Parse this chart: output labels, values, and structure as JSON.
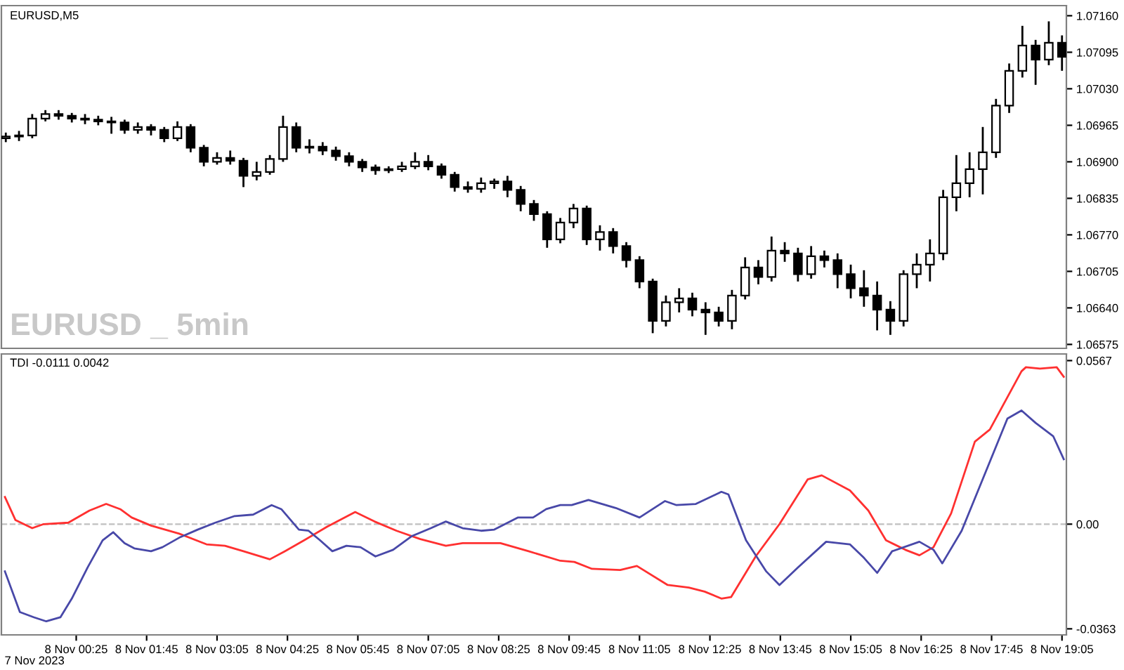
{
  "chart_data": [
    {
      "type": "candlestick",
      "title": "EURUSD,M5",
      "annotations": [
        "EURUSD _ 5min"
      ],
      "color": "#000000",
      "tick_labels": "y",
      "xlim": [
        "2023-11-07T23:00",
        "2023-11-08T19:10"
      ],
      "ylim": [
        1.06568,
        1.07178
      ],
      "yticks": [
        {
          "value": 1.0716,
          "label": "1.07160"
        },
        {
          "value": 1.07095,
          "label": "1.07095"
        },
        {
          "value": 1.0703,
          "label": "1.07030"
        },
        {
          "value": 1.06965,
          "label": "1.06965"
        },
        {
          "value": 1.069,
          "label": "1.06900"
        },
        {
          "value": 1.06835,
          "label": "1.06835"
        },
        {
          "value": 1.0677,
          "label": "1.06770"
        },
        {
          "value": 1.06705,
          "label": "1.06705"
        },
        {
          "value": 1.0664,
          "label": "1.06640"
        },
        {
          "value": 1.06575,
          "label": "1.06575"
        }
      ],
      "x": [
        "2023-11-07T23:05",
        "2023-11-07T23:20",
        "2023-11-07T23:35",
        "2023-11-07T23:50",
        "2023-11-08T00:05",
        "2023-11-08T00:20",
        "2023-11-08T00:35",
        "2023-11-08T00:50",
        "2023-11-08T01:05",
        "2023-11-08T01:20",
        "2023-11-08T01:35",
        "2023-11-08T01:50",
        "2023-11-08T02:05",
        "2023-11-08T02:20",
        "2023-11-08T02:35",
        "2023-11-08T02:50",
        "2023-11-08T03:05",
        "2023-11-08T03:20",
        "2023-11-08T03:35",
        "2023-11-08T03:50",
        "2023-11-08T04:05",
        "2023-11-08T04:20",
        "2023-11-08T04:35",
        "2023-11-08T04:50",
        "2023-11-08T05:05",
        "2023-11-08T05:20",
        "2023-11-08T05:35",
        "2023-11-08T05:50",
        "2023-11-08T06:05",
        "2023-11-08T06:20",
        "2023-11-08T06:35",
        "2023-11-08T06:50",
        "2023-11-08T07:05",
        "2023-11-08T07:20",
        "2023-11-08T07:35",
        "2023-11-08T07:50",
        "2023-11-08T08:05",
        "2023-11-08T08:20",
        "2023-11-08T08:35",
        "2023-11-08T08:50",
        "2023-11-08T09:05",
        "2023-11-08T09:20",
        "2023-11-08T09:35",
        "2023-11-08T09:50",
        "2023-11-08T10:05",
        "2023-11-08T10:20",
        "2023-11-08T10:35",
        "2023-11-08T10:50",
        "2023-11-08T11:05",
        "2023-11-08T11:20",
        "2023-11-08T11:35",
        "2023-11-08T11:50",
        "2023-11-08T12:05",
        "2023-11-08T12:20",
        "2023-11-08T12:35",
        "2023-11-08T12:50",
        "2023-11-08T13:05",
        "2023-11-08T13:20",
        "2023-11-08T13:35",
        "2023-11-08T13:50",
        "2023-11-08T14:05",
        "2023-11-08T14:20",
        "2023-11-08T14:35",
        "2023-11-08T14:50",
        "2023-11-08T15:05",
        "2023-11-08T15:20",
        "2023-11-08T15:35",
        "2023-11-08T15:50",
        "2023-11-08T16:05",
        "2023-11-08T16:20",
        "2023-11-08T16:35",
        "2023-11-08T16:50",
        "2023-11-08T17:05",
        "2023-11-08T17:20",
        "2023-11-08T17:35",
        "2023-11-08T17:50",
        "2023-11-08T18:05",
        "2023-11-08T18:20",
        "2023-11-08T18:35",
        "2023-11-08T18:50",
        "2023-11-08T19:05"
      ],
      "ohlc": [
        [
          1.06942,
          1.06952,
          1.06935,
          1.06945
        ],
        [
          1.06945,
          1.06955,
          1.06937,
          1.06947
        ],
        [
          1.06947,
          1.06985,
          1.06942,
          1.06977
        ],
        [
          1.06977,
          1.06992,
          1.06972,
          1.06985
        ],
        [
          1.06985,
          1.06992,
          1.06975,
          1.06982
        ],
        [
          1.06982,
          1.06987,
          1.0697,
          1.06977
        ],
        [
          1.06977,
          1.06985,
          1.06967,
          1.06975
        ],
        [
          1.06975,
          1.06982,
          1.06965,
          1.06972
        ],
        [
          1.06972,
          1.0698,
          1.0695,
          1.0697
        ],
        [
          1.0697,
          1.06975,
          1.0695,
          1.06957
        ],
        [
          1.06957,
          1.0697,
          1.0695,
          1.06962
        ],
        [
          1.06962,
          1.06967,
          1.06947,
          1.06957
        ],
        [
          1.06957,
          1.06962,
          1.06935,
          1.06942
        ],
        [
          1.06942,
          1.06972,
          1.06937,
          1.06962
        ],
        [
          1.06962,
          1.06967,
          1.06917,
          1.06925
        ],
        [
          1.06925,
          1.0693,
          1.06892,
          1.069
        ],
        [
          1.069,
          1.06917,
          1.06895,
          1.06907
        ],
        [
          1.06907,
          1.0692,
          1.06895,
          1.06902
        ],
        [
          1.06902,
          1.06907,
          1.06855,
          1.06875
        ],
        [
          1.06875,
          1.069,
          1.06867,
          1.06882
        ],
        [
          1.06882,
          1.06912,
          1.06877,
          1.06905
        ],
        [
          1.06905,
          1.06982,
          1.069,
          1.06962
        ],
        [
          1.06962,
          1.0697,
          1.06917,
          1.06925
        ],
        [
          1.06925,
          1.0694,
          1.06915,
          1.06927
        ],
        [
          1.06927,
          1.06935,
          1.06912,
          1.0692
        ],
        [
          1.0692,
          1.06927,
          1.06902,
          1.0691
        ],
        [
          1.0691,
          1.06917,
          1.06892,
          1.069
        ],
        [
          1.069,
          1.06905,
          1.06882,
          1.0689
        ],
        [
          1.0689,
          1.06895,
          1.06877,
          1.06885
        ],
        [
          1.06885,
          1.06892,
          1.0688,
          1.06887
        ],
        [
          1.06887,
          1.069,
          1.06882,
          1.06892
        ],
        [
          1.06892,
          1.06917,
          1.06887,
          1.069
        ],
        [
          1.069,
          1.06912,
          1.06885,
          1.06892
        ],
        [
          1.06892,
          1.06897,
          1.0687,
          1.06877
        ],
        [
          1.06877,
          1.06882,
          1.06847,
          1.06855
        ],
        [
          1.06855,
          1.06865,
          1.06845,
          1.06852
        ],
        [
          1.06852,
          1.06872,
          1.06845,
          1.06862
        ],
        [
          1.06862,
          1.0687,
          1.06852,
          1.06865
        ],
        [
          1.06865,
          1.06875,
          1.06837,
          1.0685
        ],
        [
          1.0685,
          1.06857,
          1.06812,
          1.06825
        ],
        [
          1.06825,
          1.06832,
          1.06795,
          1.06807
        ],
        [
          1.06807,
          1.06812,
          1.06747,
          1.06762
        ],
        [
          1.06762,
          1.068,
          1.06755,
          1.06792
        ],
        [
          1.06792,
          1.06825,
          1.06782,
          1.06817
        ],
        [
          1.06817,
          1.06822,
          1.06752,
          1.06762
        ],
        [
          1.06762,
          1.06787,
          1.06742,
          1.06775
        ],
        [
          1.06775,
          1.06782,
          1.06737,
          1.0675
        ],
        [
          1.0675,
          1.06757,
          1.06712,
          1.06725
        ],
        [
          1.06725,
          1.06732,
          1.06675,
          1.06687
        ],
        [
          1.06687,
          1.06692,
          1.06595,
          1.06617
        ],
        [
          1.06617,
          1.06662,
          1.06607,
          1.0665
        ],
        [
          1.0665,
          1.06675,
          1.06632,
          1.06657
        ],
        [
          1.06657,
          1.06667,
          1.06625,
          1.06637
        ],
        [
          1.06637,
          1.0665,
          1.06592,
          1.06632
        ],
        [
          1.06632,
          1.06642,
          1.06607,
          1.06617
        ],
        [
          1.06617,
          1.06672,
          1.06602,
          1.06662
        ],
        [
          1.06662,
          1.0673,
          1.06655,
          1.06712
        ],
        [
          1.06712,
          1.06725,
          1.06682,
          1.06695
        ],
        [
          1.06695,
          1.06767,
          1.06687,
          1.06742
        ],
        [
          1.06742,
          1.06757,
          1.06722,
          1.06737
        ],
        [
          1.06737,
          1.06747,
          1.06687,
          1.067
        ],
        [
          1.067,
          1.0675,
          1.06692,
          1.06732
        ],
        [
          1.06732,
          1.06742,
          1.06712,
          1.06725
        ],
        [
          1.06725,
          1.06737,
          1.06675,
          1.067
        ],
        [
          1.067,
          1.06717,
          1.06657,
          1.06675
        ],
        [
          1.06675,
          1.06707,
          1.06642,
          1.06662
        ],
        [
          1.06662,
          1.06687,
          1.066,
          1.06637
        ],
        [
          1.06637,
          1.06652,
          1.06592,
          1.06617
        ],
        [
          1.06617,
          1.06707,
          1.06607,
          1.067
        ],
        [
          1.067,
          1.06737,
          1.06675,
          1.06717
        ],
        [
          1.06717,
          1.06762,
          1.06687,
          1.06737
        ],
        [
          1.06737,
          1.0685,
          1.06725,
          1.06837
        ],
        [
          1.06837,
          1.06912,
          1.06812,
          1.06862
        ],
        [
          1.06862,
          1.06917,
          1.06837,
          1.06887
        ],
        [
          1.06887,
          1.06962,
          1.06842,
          1.06917
        ],
        [
          1.06917,
          1.07012,
          1.06907,
          1.07
        ],
        [
          1.07,
          1.07075,
          1.06987,
          1.07062
        ],
        [
          1.07062,
          1.07142,
          1.0705,
          1.07107
        ],
        [
          1.07107,
          1.07117,
          1.07037,
          1.07082
        ],
        [
          1.07082,
          1.0715,
          1.07072,
          1.07112
        ],
        [
          1.07112,
          1.07125,
          1.07062,
          1.07087
        ]
      ]
    },
    {
      "type": "line",
      "title": "TDI -0.0111 0.0042",
      "xlim": [
        "2023-11-07T23:00",
        "2023-11-08T19:10"
      ],
      "ylim": [
        -0.0384,
        0.059
      ],
      "yticks": [
        0.0567,
        {
          "value": 0,
          "label": "0.00"
        },
        -0.0363
      ],
      "annotations": [
        "7 Nov 2023"
      ],
      "xticks": [
        {
          "value": "2023-11-08T00:25",
          "label": "8 Nov 00:25"
        },
        {
          "value": "2023-11-08T01:45",
          "label": "8 Nov 01:45"
        },
        {
          "value": "2023-11-08T03:05",
          "label": "8 Nov 03:05"
        },
        {
          "value": "2023-11-08T04:25",
          "label": "8 Nov 04:25"
        },
        {
          "value": "2023-11-08T05:45",
          "label": "8 Nov 05:45"
        },
        {
          "value": "2023-11-08T07:05",
          "label": "8 Nov 07:05"
        },
        {
          "value": "2023-11-08T08:25",
          "label": "8 Nov 08:25"
        },
        {
          "value": "2023-11-08T09:45",
          "label": "8 Nov 09:45"
        },
        {
          "value": "2023-11-08T11:05",
          "label": "8 Nov 11:05"
        },
        {
          "value": "2023-11-08T12:25",
          "label": "8 Nov 12:25"
        },
        {
          "value": "2023-11-08T13:45",
          "label": "8 Nov 13:45"
        },
        {
          "value": "2023-11-08T15:05",
          "label": "8 Nov 15:05"
        },
        {
          "value": "2023-11-08T16:25",
          "label": "8 Nov 16:25"
        },
        {
          "value": "2023-11-08T17:45",
          "label": "8 Nov 17:45"
        },
        {
          "value": "2023-11-08T19:05",
          "label": "8 Nov 19:05"
        }
      ],
      "ref_lines": [
        {
          "axis": "y",
          "value": 0,
          "color": "#c0c0c0",
          "line_style": "dashed"
        }
      ],
      "series": [
        {
          "color": "#ff3030",
          "x": [
            "2023-11-07T23:04",
            "2023-11-07T23:16",
            "2023-11-07T23:35",
            "2023-11-07T23:48",
            "2023-11-08T00:16",
            "2023-11-08T00:40",
            "2023-11-08T00:59",
            "2023-11-08T01:15",
            "2023-11-08T01:28",
            "2023-11-08T01:50",
            "2023-11-08T02:22",
            "2023-11-08T02:53",
            "2023-11-08T03:14",
            "2023-11-08T03:35",
            "2023-11-08T04:05",
            "2023-11-08T04:22",
            "2023-11-08T04:44",
            "2023-11-08T05:10",
            "2023-11-08T05:42",
            "2023-11-08T06:04",
            "2023-11-08T06:29",
            "2023-11-08T06:56",
            "2023-11-08T07:25",
            "2023-11-08T07:44",
            "2023-11-08T08:27",
            "2023-11-08T08:59",
            "2023-11-08T09:35",
            "2023-11-08T09:51",
            "2023-11-08T10:11",
            "2023-11-08T10:43",
            "2023-11-08T11:02",
            "2023-11-08T11:37",
            "2023-11-08T12:01",
            "2023-11-08T12:19",
            "2023-11-08T12:38",
            "2023-11-08T12:49",
            "2023-11-08T13:17",
            "2023-11-08T13:44",
            "2023-11-08T14:16",
            "2023-11-08T14:32",
            "2023-11-08T15:04",
            "2023-11-08T15:25",
            "2023-11-08T15:45",
            "2023-11-08T16:07",
            "2023-11-08T16:23",
            "2023-11-08T16:39",
            "2023-11-08T16:59",
            "2023-11-08T17:26",
            "2023-11-08T17:43",
            "2023-11-08T18:19",
            "2023-11-08T18:24",
            "2023-11-08T18:40",
            "2023-11-08T18:59",
            "2023-11-08T19:07"
          ],
          "values": [
            0.0094,
            0.0014,
            -0.0014,
            0,
            0.0005,
            0.0047,
            0.007,
            0.0052,
            0.0023,
            -0.0005,
            -0.0033,
            -0.007,
            -0.0075,
            -0.0094,
            -0.0122,
            -0.0094,
            -0.0056,
            -0.0009,
            0.0042,
            0.0009,
            -0.0023,
            -0.0052,
            -0.0075,
            -0.0066,
            -0.0066,
            -0.0094,
            -0.0127,
            -0.0131,
            -0.0155,
            -0.0159,
            -0.0145,
            -0.0211,
            -0.022,
            -0.0234,
            -0.0258,
            -0.0253,
            -0.0112,
            0,
            0.0155,
            0.0169,
            0.0117,
            0.0047,
            -0.0056,
            -0.0089,
            -0.0108,
            -0.008,
            0.0037,
            0.0286,
            0.0328,
            0.053,
            0.0544,
            0.0539,
            0.0544,
            0.0511
          ]
        },
        {
          "color": "#4848a8",
          "x": [
            "2023-11-07T23:04",
            "2023-11-07T23:21",
            "2023-11-07T23:37",
            "2023-11-07T23:51",
            "2023-11-08T00:07",
            "2023-11-08T00:20",
            "2023-11-08T00:38",
            "2023-11-08T00:55",
            "2023-11-08T01:07",
            "2023-11-08T01:20",
            "2023-11-08T01:31",
            "2023-11-08T01:50",
            "2023-11-08T02:03",
            "2023-11-08T02:22",
            "2023-11-08T02:43",
            "2023-11-08T03:03",
            "2023-11-08T03:25",
            "2023-11-08T03:46",
            "2023-11-08T04:07",
            "2023-11-08T04:18",
            "2023-11-08T04:38",
            "2023-11-08T04:49",
            "2023-11-08T05:02",
            "2023-11-08T05:16",
            "2023-11-08T05:32",
            "2023-11-08T05:48",
            "2023-11-08T06:05",
            "2023-11-08T06:25",
            "2023-11-08T06:46",
            "2023-11-08T07:08",
            "2023-11-08T07:25",
            "2023-11-08T07:44",
            "2023-11-08T08:05",
            "2023-11-08T08:20",
            "2023-11-08T08:47",
            "2023-11-08T09:04",
            "2023-11-08T09:19",
            "2023-11-08T09:35",
            "2023-11-08T09:48",
            "2023-11-08T10:07",
            "2023-11-08T10:38",
            "2023-11-08T11:05",
            "2023-11-08T11:34",
            "2023-11-08T11:47",
            "2023-11-08T12:09",
            "2023-11-08T12:38",
            "2023-11-08T12:46",
            "2023-11-08T13:06",
            "2023-11-08T13:29",
            "2023-11-08T13:44",
            "2023-11-08T14:05",
            "2023-11-08T14:37",
            "2023-11-08T15:04",
            "2023-11-08T15:20",
            "2023-11-08T15:35",
            "2023-11-08T15:52",
            "2023-11-08T16:23",
            "2023-11-08T16:39",
            "2023-11-08T16:49",
            "2023-11-08T17:11",
            "2023-11-08T17:36",
            "2023-11-08T18:03",
            "2023-11-08T18:19",
            "2023-11-08T18:35",
            "2023-11-08T18:55",
            "2023-11-08T19:07"
          ],
          "values": [
            -0.0164,
            -0.0305,
            -0.0323,
            -0.0337,
            -0.0323,
            -0.0258,
            -0.015,
            -0.0056,
            -0.0028,
            -0.0066,
            -0.0084,
            -0.0094,
            -0.008,
            -0.0047,
            -0.0019,
            0.0005,
            0.0028,
            0.0033,
            0.0066,
            0.0052,
            -0.0019,
            -0.0023,
            -0.0056,
            -0.0094,
            -0.0075,
            -0.008,
            -0.0112,
            -0.0089,
            -0.0042,
            -0.0014,
            0.0009,
            -0.0014,
            -0.0023,
            -0.0019,
            0.0023,
            0.0023,
            0.0052,
            0.0066,
            0.0066,
            0.0084,
            0.0056,
            0.0023,
            0.008,
            0.0066,
            0.007,
            0.0112,
            0.0103,
            -0.0056,
            -0.0164,
            -0.0211,
            -0.015,
            -0.0061,
            -0.007,
            -0.0117,
            -0.0169,
            -0.0094,
            -0.0061,
            -0.0089,
            -0.0136,
            -0.0023,
            0.0164,
            0.0366,
            0.0394,
            0.0351,
            0.0305,
            0.0225
          ]
        }
      ]
    }
  ]
}
